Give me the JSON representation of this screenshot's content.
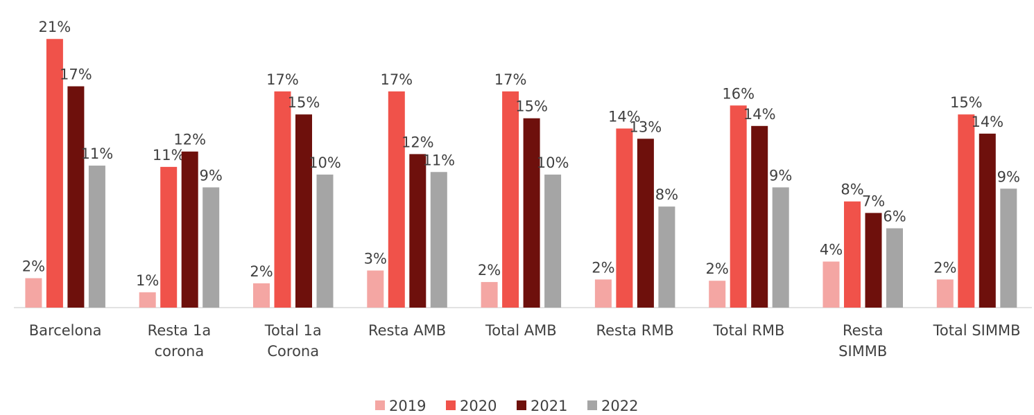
{
  "chart_data": {
    "type": "bar",
    "categories": [
      "Barcelona",
      "Resta 1a\ncorona",
      "Total 1a\nCorona",
      "Resta AMB",
      "Total AMB",
      "Resta RMB",
      "Total RMB",
      "Resta\nSIMMB",
      "Total SIMMB"
    ],
    "series": [
      {
        "name": "2019",
        "color": "#f4a6a3",
        "values": [
          2.3,
          1.2,
          1.9,
          2.9,
          2.0,
          2.2,
          2.1,
          3.6,
          2.2
        ],
        "value_labels": [
          "2%",
          "1%",
          "2%",
          "3%",
          "2%",
          "2%",
          "2%",
          "4%",
          "2%"
        ]
      },
      {
        "name": "2020",
        "color": "#f0524a",
        "values": [
          21.0,
          11.0,
          16.9,
          16.9,
          16.9,
          14.0,
          15.8,
          8.3,
          15.1
        ],
        "value_labels": [
          "21%",
          "11%",
          "17%",
          "17%",
          "17%",
          "14%",
          "16%",
          "8%",
          "15%"
        ]
      },
      {
        "name": "2021",
        "color": "#6e100c",
        "values": [
          17.3,
          12.2,
          15.1,
          12.0,
          14.8,
          13.2,
          14.2,
          7.4,
          13.6
        ],
        "value_labels": [
          "17%",
          "12%",
          "15%",
          "12%",
          "15%",
          "13%",
          "14%",
          "7%",
          "14%"
        ]
      },
      {
        "name": "2022",
        "color": "#a5a5a5",
        "values": [
          11.1,
          9.4,
          10.4,
          10.6,
          10.4,
          7.9,
          9.4,
          6.2,
          9.3
        ],
        "value_labels": [
          "11%",
          "9%",
          "10%",
          "11%",
          "10%",
          "8%",
          "9%",
          "6%",
          "9%"
        ]
      }
    ],
    "ylim": [
      0,
      21.5
    ],
    "grid": false,
    "legend": "bottom"
  }
}
